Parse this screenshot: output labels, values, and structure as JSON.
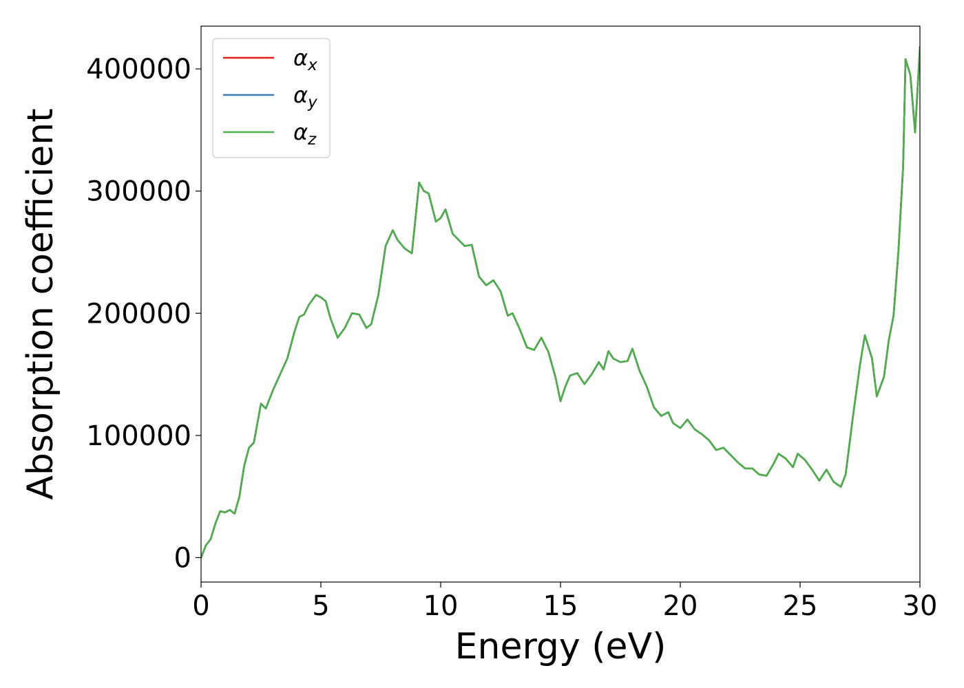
{
  "chart_data": {
    "type": "line",
    "title": "",
    "xlabel": "Energy (eV)",
    "ylabel": "Absorption coefficient",
    "xlim": [
      0,
      30
    ],
    "ylim": [
      -20000,
      435000
    ],
    "xticks": [
      0,
      5,
      10,
      15,
      20,
      25,
      30
    ],
    "yticks": [
      0,
      100000,
      200000,
      300000,
      400000
    ],
    "grid": false,
    "legend_position": "top-left",
    "x": [
      0,
      0.2,
      0.4,
      0.6,
      0.8,
      1.0,
      1.2,
      1.4,
      1.6,
      1.8,
      2.0,
      2.2,
      2.5,
      2.7,
      3.0,
      3.3,
      3.6,
      3.9,
      4.1,
      4.3,
      4.5,
      4.8,
      5.0,
      5.2,
      5.4,
      5.7,
      6.0,
      6.3,
      6.6,
      6.9,
      7.1,
      7.4,
      7.7,
      8.0,
      8.2,
      8.5,
      8.8,
      9.1,
      9.3,
      9.5,
      9.8,
      10.0,
      10.2,
      10.5,
      10.8,
      11.0,
      11.3,
      11.6,
      11.9,
      12.2,
      12.5,
      12.8,
      13.0,
      13.3,
      13.6,
      13.9,
      14.2,
      14.5,
      14.8,
      15.0,
      15.2,
      15.4,
      15.7,
      16.0,
      16.3,
      16.6,
      16.8,
      17.0,
      17.2,
      17.5,
      17.8,
      18.0,
      18.3,
      18.6,
      18.9,
      19.2,
      19.5,
      19.7,
      20.0,
      20.3,
      20.6,
      20.9,
      21.2,
      21.5,
      21.8,
      22.1,
      22.4,
      22.7,
      23.0,
      23.3,
      23.6,
      23.9,
      24.1,
      24.4,
      24.7,
      24.9,
      25.2,
      25.5,
      25.8,
      26.1,
      26.4,
      26.7,
      26.9,
      27.2,
      27.5,
      27.7,
      28.0,
      28.2,
      28.5,
      28.7,
      28.9,
      29.1,
      29.3,
      29.4,
      29.6,
      29.8,
      30.0
    ],
    "series": [
      {
        "name": "αx",
        "color": "#e41a1c",
        "values": [
          0,
          10000,
          15000,
          28000,
          38000,
          37000,
          39000,
          36000,
          50000,
          75000,
          90000,
          94000,
          126000,
          122000,
          137000,
          150000,
          163000,
          185000,
          197000,
          199000,
          207000,
          215000,
          213000,
          210000,
          196000,
          180000,
          188000,
          200000,
          199000,
          188000,
          191000,
          215000,
          255000,
          268000,
          260000,
          253000,
          249000,
          307000,
          300000,
          298000,
          275000,
          278000,
          285000,
          265000,
          259000,
          255000,
          256000,
          230000,
          223000,
          227000,
          218000,
          198000,
          200000,
          187000,
          172000,
          170000,
          180000,
          168000,
          147000,
          128000,
          140000,
          149000,
          151000,
          142000,
          150000,
          160000,
          154000,
          169000,
          163000,
          160000,
          161000,
          171000,
          153000,
          140000,
          123000,
          116000,
          119000,
          110000,
          106000,
          113000,
          105000,
          101000,
          96000,
          88000,
          90000,
          84000,
          78000,
          73000,
          73000,
          68000,
          67000,
          77000,
          85000,
          81000,
          74000,
          85000,
          80000,
          72000,
          63000,
          72000,
          62000,
          58000,
          68000,
          115000,
          158000,
          182000,
          163000,
          132000,
          148000,
          178000,
          198000,
          250000,
          320000,
          408000,
          395000,
          348000,
          418000
        ]
      },
      {
        "name": "αy",
        "color": "#377eb8",
        "values": [
          0,
          10000,
          15000,
          28000,
          38000,
          37000,
          39000,
          36000,
          50000,
          75000,
          90000,
          94000,
          126000,
          122000,
          137000,
          150000,
          163000,
          185000,
          197000,
          199000,
          207000,
          215000,
          213000,
          210000,
          196000,
          180000,
          188000,
          200000,
          199000,
          188000,
          191000,
          215000,
          255000,
          268000,
          260000,
          253000,
          249000,
          307000,
          300000,
          298000,
          275000,
          278000,
          285000,
          265000,
          259000,
          255000,
          256000,
          230000,
          223000,
          227000,
          218000,
          198000,
          200000,
          187000,
          172000,
          170000,
          180000,
          168000,
          147000,
          128000,
          140000,
          149000,
          151000,
          142000,
          150000,
          160000,
          154000,
          169000,
          163000,
          160000,
          161000,
          171000,
          153000,
          140000,
          123000,
          116000,
          119000,
          110000,
          106000,
          113000,
          105000,
          101000,
          96000,
          88000,
          90000,
          84000,
          78000,
          73000,
          73000,
          68000,
          67000,
          77000,
          85000,
          81000,
          74000,
          85000,
          80000,
          72000,
          63000,
          72000,
          62000,
          58000,
          68000,
          115000,
          158000,
          182000,
          163000,
          132000,
          148000,
          178000,
          198000,
          250000,
          320000,
          408000,
          395000,
          348000,
          418000
        ]
      },
      {
        "name": "αz",
        "color": "#4daf4a",
        "values": [
          0,
          10000,
          15000,
          28000,
          38000,
          37000,
          39000,
          36000,
          50000,
          75000,
          90000,
          94000,
          126000,
          122000,
          137000,
          150000,
          163000,
          185000,
          197000,
          199000,
          207000,
          215000,
          213000,
          210000,
          196000,
          180000,
          188000,
          200000,
          199000,
          188000,
          191000,
          215000,
          255000,
          268000,
          260000,
          253000,
          249000,
          307000,
          300000,
          298000,
          275000,
          278000,
          285000,
          265000,
          259000,
          255000,
          256000,
          230000,
          223000,
          227000,
          218000,
          198000,
          200000,
          187000,
          172000,
          170000,
          180000,
          168000,
          147000,
          128000,
          140000,
          149000,
          151000,
          142000,
          150000,
          160000,
          154000,
          169000,
          163000,
          160000,
          161000,
          171000,
          153000,
          140000,
          123000,
          116000,
          119000,
          110000,
          106000,
          113000,
          105000,
          101000,
          96000,
          88000,
          90000,
          84000,
          78000,
          73000,
          73000,
          68000,
          67000,
          77000,
          85000,
          81000,
          74000,
          85000,
          80000,
          72000,
          63000,
          72000,
          62000,
          58000,
          68000,
          115000,
          158000,
          182000,
          163000,
          132000,
          148000,
          178000,
          198000,
          250000,
          320000,
          408000,
          395000,
          348000,
          418000
        ]
      }
    ]
  },
  "legend": {
    "items": [
      {
        "base": "α",
        "sub": "x",
        "color": "#e41a1c"
      },
      {
        "base": "α",
        "sub": "y",
        "color": "#377eb8"
      },
      {
        "base": "α",
        "sub": "z",
        "color": "#4daf4a"
      }
    ]
  }
}
